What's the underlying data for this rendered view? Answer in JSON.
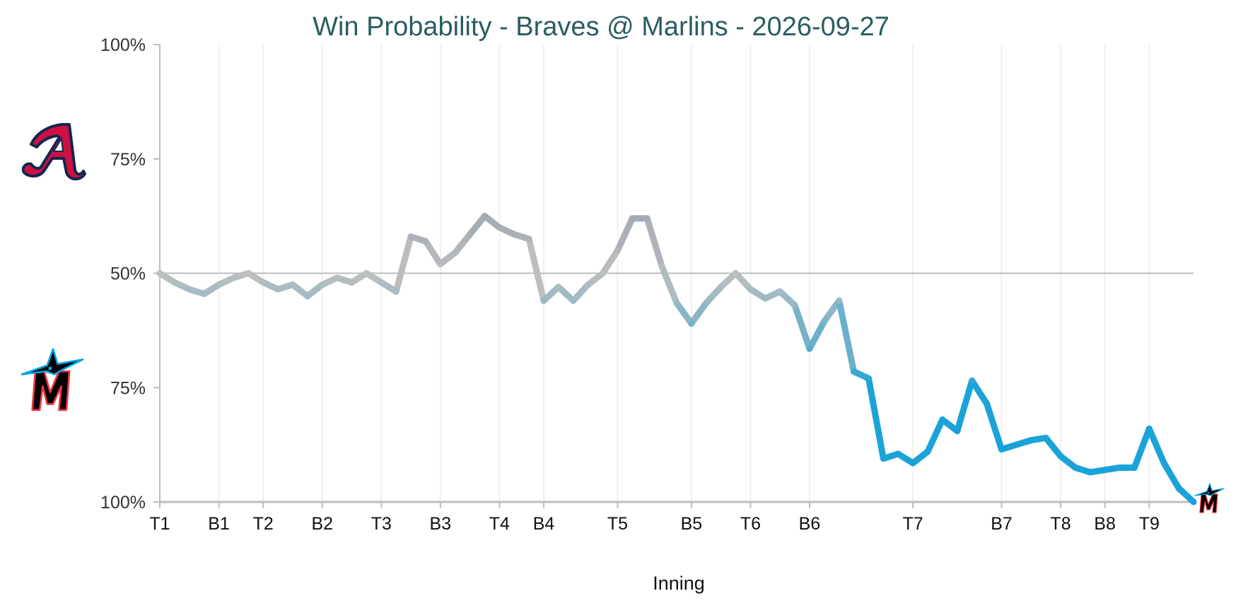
{
  "chart_data": {
    "type": "line",
    "title": "Win Probability - Braves @ Marlins - 2026-09-27",
    "xlabel": "Inning",
    "ylabel": "",
    "teams": {
      "top": "Braves",
      "bottom": "Marlins"
    },
    "colors": {
      "top": "#ce1141",
      "bottom": "#1ba3d8",
      "neutral": "#bfbfbf",
      "title": "#2a5d62"
    },
    "icons": {
      "top": "braves-logo-icon",
      "bottom": "marlins-logo-icon",
      "end": "marlins-logo-icon"
    },
    "yticks": [
      "100%",
      "75%",
      "50%",
      "75%",
      "100%"
    ],
    "ytick_values": [
      100,
      75,
      50,
      25,
      0
    ],
    "ylim": [
      0,
      100
    ],
    "xlim": [
      0,
      70
    ],
    "midline": 50,
    "grid": true,
    "xticks": [
      {
        "label": "T1",
        "x": 0
      },
      {
        "label": "B1",
        "x": 4
      },
      {
        "label": "T2",
        "x": 7
      },
      {
        "label": "B2",
        "x": 11
      },
      {
        "label": "T3",
        "x": 15
      },
      {
        "label": "B3",
        "x": 19
      },
      {
        "label": "T4",
        "x": 23
      },
      {
        "label": "B4",
        "x": 26
      },
      {
        "label": "T5",
        "x": 31
      },
      {
        "label": "B5",
        "x": 36
      },
      {
        "label": "T6",
        "x": 40
      },
      {
        "label": "B6",
        "x": 44
      },
      {
        "label": "T7",
        "x": 51
      },
      {
        "label": "B7",
        "x": 57
      },
      {
        "label": "T8",
        "x": 61
      },
      {
        "label": "B8",
        "x": 64
      },
      {
        "label": "T9",
        "x": 67
      }
    ],
    "series": [
      {
        "values": [
          [
            0,
            50
          ],
          [
            1,
            48
          ],
          [
            2,
            46.5
          ],
          [
            3,
            45.5
          ],
          [
            4,
            47.5
          ],
          [
            5,
            49
          ],
          [
            6,
            50
          ],
          [
            7,
            48
          ],
          [
            8,
            46.5
          ],
          [
            9,
            47.5
          ],
          [
            10,
            45
          ],
          [
            11,
            47.5
          ],
          [
            12,
            49
          ],
          [
            13,
            48
          ],
          [
            14,
            50
          ],
          [
            15,
            48
          ],
          [
            16,
            46
          ],
          [
            17,
            58
          ],
          [
            18,
            57
          ],
          [
            19,
            52
          ],
          [
            20,
            54.5
          ],
          [
            21,
            58.5
          ],
          [
            22,
            62.5
          ],
          [
            23,
            60
          ],
          [
            24,
            58.5
          ],
          [
            25,
            57.5
          ],
          [
            26,
            44
          ],
          [
            27,
            47
          ],
          [
            28,
            44
          ],
          [
            29,
            47.5
          ],
          [
            30,
            50
          ],
          [
            31,
            55
          ],
          [
            32,
            62
          ],
          [
            33,
            62
          ],
          [
            34,
            51.5
          ],
          [
            35,
            43.5
          ],
          [
            36,
            39
          ],
          [
            37,
            43.5
          ],
          [
            38,
            47
          ],
          [
            39,
            50
          ],
          [
            40,
            46.5
          ],
          [
            41,
            44.5
          ],
          [
            42,
            46
          ],
          [
            43,
            43
          ],
          [
            44,
            33.5
          ],
          [
            45,
            39.5
          ],
          [
            46,
            44
          ],
          [
            47,
            28.5
          ],
          [
            48,
            27
          ],
          [
            49,
            9.5
          ],
          [
            50,
            10.5
          ],
          [
            51,
            8.5
          ],
          [
            52,
            11
          ],
          [
            53,
            18
          ],
          [
            54,
            15.5
          ],
          [
            55,
            26.5
          ],
          [
            56,
            21.5
          ],
          [
            57,
            11.5
          ],
          [
            58,
            12.5
          ],
          [
            59,
            13.5
          ],
          [
            60,
            14
          ],
          [
            61,
            10
          ],
          [
            62,
            7.5
          ],
          [
            63,
            6.5
          ],
          [
            64,
            7
          ],
          [
            65,
            7.5
          ],
          [
            66,
            7.5
          ],
          [
            67,
            16
          ],
          [
            68,
            8.5
          ],
          [
            69,
            3
          ],
          [
            70,
            0
          ]
        ]
      }
    ]
  }
}
